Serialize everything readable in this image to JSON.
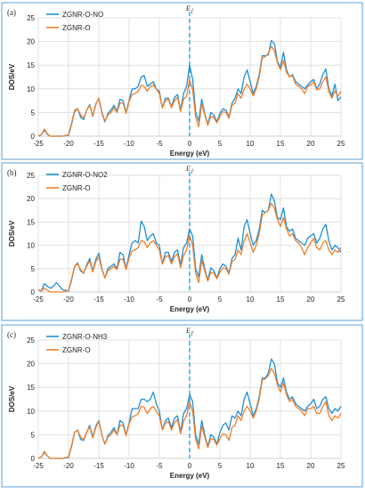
{
  "colors": {
    "series1": "#1f8fd4",
    "series2": "#f07f2a",
    "ef_line": "#2aa7d8",
    "frame": "#5aa0d8",
    "grid": "#d9d9d9"
  },
  "chart_data": [
    {
      "type": "line",
      "panel_label": "(a)",
      "ef_label": "E",
      "ef_sub": "f",
      "xlabel": "Energy (eV)",
      "ylabel": "DOS/eV",
      "xlim": [
        -25,
        25
      ],
      "ylim": [
        0,
        25
      ],
      "xticks": [
        -25,
        -20,
        -15,
        -10,
        -5,
        0,
        5,
        10,
        15,
        20,
        25
      ],
      "yticks": [
        0,
        5,
        10,
        15,
        20,
        25
      ],
      "grid": true,
      "legend_position": "top-left",
      "x": [
        -25,
        -24.5,
        -24,
        -23.5,
        -23,
        -22.5,
        -22,
        -21,
        -20,
        -19.5,
        -19,
        -18.5,
        -18,
        -17.5,
        -17,
        -16.5,
        -16,
        -15.5,
        -15,
        -14.5,
        -14,
        -13.5,
        -13,
        -12.5,
        -12,
        -11.5,
        -11,
        -10.5,
        -10,
        -9.5,
        -9,
        -8.5,
        -8,
        -7.5,
        -7,
        -6.5,
        -6,
        -5.5,
        -5,
        -4.5,
        -4,
        -3.5,
        -3,
        -2.5,
        -2,
        -1.5,
        -1,
        -0.5,
        0,
        0.5,
        1,
        1.5,
        2,
        2.5,
        3,
        3.5,
        4,
        4.5,
        5,
        5.5,
        6,
        6.5,
        7,
        7.5,
        8,
        8.5,
        9,
        9.5,
        10,
        10.5,
        11,
        11.5,
        12,
        12.5,
        13,
        13.5,
        14,
        14.5,
        15,
        15.5,
        16,
        16.5,
        17,
        17.5,
        18,
        18.5,
        19,
        19.5,
        20,
        20.5,
        21,
        21.5,
        22,
        22.5,
        23,
        23.5,
        24,
        24.5,
        25
      ],
      "series": [
        {
          "name": "ZGNR-O-NO",
          "values": [
            0,
            0.3,
            1.3,
            0.4,
            0,
            0,
            0,
            0,
            0.2,
            2.5,
            5.2,
            5.8,
            4.0,
            3.5,
            5.5,
            6.7,
            4.2,
            6.8,
            8.0,
            5.0,
            3.0,
            4.8,
            5.5,
            6.5,
            5.2,
            7.8,
            7.5,
            5.0,
            7.6,
            10.0,
            10.0,
            10.5,
            12.5,
            12.8,
            10.5,
            11.0,
            11.5,
            10.0,
            9.5,
            6.0,
            8.0,
            8.0,
            6.2,
            8.2,
            8.8,
            5.5,
            9.0,
            10.5,
            15.0,
            12.0,
            5.0,
            3.2,
            7.8,
            4.8,
            2.5,
            5.0,
            4.5,
            3.0,
            4.8,
            5.8,
            5.5,
            4.0,
            7.0,
            8.0,
            10.0,
            9.0,
            12.5,
            14.0,
            11.5,
            9.0,
            10.5,
            13.0,
            17.0,
            17.0,
            17.2,
            20.2,
            19.5,
            15.8,
            14.5,
            17.7,
            14.0,
            12.5,
            13.0,
            11.5,
            11.0,
            10.5,
            10.0,
            10.8,
            11.5,
            12.0,
            10.0,
            11.0,
            13.0,
            14.2,
            10.0,
            8.5,
            11.0,
            7.5,
            8.3
          ]
        },
        {
          "name": "ZGNR-O",
          "values": [
            0,
            0.3,
            1.5,
            0.5,
            0,
            0,
            0,
            0,
            0.3,
            2.8,
            5.5,
            5.8,
            4.5,
            3.8,
            5.5,
            6.5,
            4.3,
            6.7,
            8.0,
            5.2,
            3.2,
            4.5,
            5.0,
            6.0,
            5.0,
            7.0,
            7.0,
            4.8,
            7.3,
            8.8,
            9.0,
            9.5,
            10.8,
            10.5,
            9.5,
            10.5,
            10.8,
            10.0,
            9.0,
            6.0,
            7.5,
            7.8,
            6.0,
            7.5,
            8.2,
            5.2,
            7.8,
            8.5,
            12.0,
            9.8,
            4.0,
            2.0,
            6.8,
            4.5,
            2.3,
            4.2,
            4.0,
            2.8,
            4.2,
            5.2,
            5.0,
            3.8,
            6.5,
            7.0,
            9.0,
            8.0,
            10.0,
            11.0,
            10.0,
            8.5,
            10.0,
            12.5,
            16.5,
            16.8,
            17.5,
            19.0,
            18.0,
            15.5,
            14.0,
            16.0,
            13.5,
            12.5,
            12.8,
            11.0,
            10.5,
            10.0,
            9.0,
            10.5,
            10.8,
            11.5,
            9.8,
            10.0,
            11.5,
            12.5,
            9.5,
            8.0,
            9.5,
            8.5,
            9.5
          ]
        }
      ]
    },
    {
      "type": "line",
      "panel_label": "(b)",
      "ef_label": "E",
      "ef_sub": "f",
      "xlabel": "Energy (eV)",
      "ylabel": "DOS/eV",
      "xlim": [
        -25,
        25
      ],
      "ylim": [
        0,
        25
      ],
      "xticks": [
        -25,
        -20,
        -15,
        -10,
        -5,
        0,
        5,
        10,
        15,
        20,
        25
      ],
      "yticks": [
        0,
        5,
        10,
        15,
        20,
        25
      ],
      "grid": true,
      "legend_position": "top-left",
      "x": [
        -25,
        -24.5,
        -24,
        -23.5,
        -23,
        -22.5,
        -22,
        -21,
        -20,
        -19.5,
        -19,
        -18.5,
        -18,
        -17.5,
        -17,
        -16.5,
        -16,
        -15.5,
        -15,
        -14.5,
        -14,
        -13.5,
        -13,
        -12.5,
        -12,
        -11.5,
        -11,
        -10.5,
        -10,
        -9.5,
        -9,
        -8.5,
        -8,
        -7.5,
        -7,
        -6.5,
        -6,
        -5.5,
        -5,
        -4.5,
        -4,
        -3.5,
        -3,
        -2.5,
        -2,
        -1.5,
        -1,
        -0.5,
        0,
        0.5,
        1,
        1.5,
        2,
        2.5,
        3,
        3.5,
        4,
        4.5,
        5,
        5.5,
        6,
        6.5,
        7,
        7.5,
        8,
        8.5,
        9,
        9.5,
        10,
        10.5,
        11,
        11.5,
        12,
        12.5,
        13,
        13.5,
        14,
        14.5,
        15,
        15.5,
        16,
        16.5,
        17,
        17.5,
        18,
        18.5,
        19,
        19.5,
        20,
        20.5,
        21,
        21.5,
        22,
        22.5,
        23,
        23.5,
        24,
        24.5,
        25
      ],
      "series": [
        {
          "name": "ZGNR-O-NO2",
          "values": [
            0.5,
            0.2,
            1.8,
            1.2,
            0.8,
            1.2,
            2.0,
            0.5,
            0.2,
            2.5,
            5.5,
            6.2,
            4.5,
            4.0,
            5.8,
            7.2,
            4.5,
            7.0,
            8.3,
            5.0,
            3.0,
            5.0,
            5.5,
            6.0,
            5.0,
            8.5,
            8.0,
            5.0,
            8.0,
            10.5,
            11.0,
            10.5,
            15.2,
            14.0,
            11.0,
            12.0,
            12.5,
            10.5,
            10.0,
            6.0,
            8.5,
            8.5,
            6.5,
            8.5,
            9.0,
            5.8,
            9.5,
            10.5,
            13.5,
            12.0,
            5.0,
            3.2,
            8.0,
            5.0,
            2.5,
            5.2,
            4.5,
            3.0,
            5.0,
            6.0,
            5.5,
            4.0,
            7.2,
            8.0,
            11.5,
            9.0,
            14.0,
            15.5,
            12.5,
            10.0,
            11.0,
            13.5,
            17.5,
            17.0,
            17.5,
            21.0,
            19.5,
            16.0,
            15.5,
            18.0,
            14.0,
            13.0,
            13.5,
            11.5,
            11.0,
            10.5,
            10.0,
            11.5,
            12.0,
            12.5,
            10.5,
            11.5,
            13.5,
            14.5,
            11.0,
            9.0,
            10.0,
            9.5,
            8.5
          ]
        },
        {
          "name": "ZGNR-O",
          "values": [
            0.5,
            0.2,
            0.8,
            0.4,
            0,
            0,
            0,
            0,
            0.3,
            2.8,
            5.5,
            6.0,
            4.8,
            4.0,
            5.5,
            6.7,
            4.3,
            6.5,
            7.5,
            4.8,
            3.0,
            4.5,
            5.0,
            5.5,
            4.8,
            7.0,
            7.0,
            4.8,
            7.3,
            8.8,
            9.0,
            9.5,
            11.0,
            10.8,
            9.5,
            10.5,
            11.0,
            10.0,
            9.0,
            6.0,
            7.5,
            7.8,
            6.0,
            7.5,
            8.2,
            5.2,
            7.8,
            9.0,
            12.2,
            10.0,
            4.0,
            2.0,
            6.8,
            4.5,
            2.3,
            4.2,
            4.0,
            2.8,
            4.2,
            5.2,
            5.0,
            3.8,
            6.5,
            7.0,
            9.0,
            8.0,
            11.0,
            12.5,
            10.5,
            8.5,
            10.0,
            12.5,
            16.5,
            17.0,
            17.5,
            19.0,
            18.0,
            15.5,
            14.0,
            16.0,
            13.5,
            12.0,
            12.5,
            11.0,
            10.5,
            9.5,
            8.0,
            9.5,
            10.5,
            11.5,
            9.5,
            9.0,
            10.5,
            11.0,
            9.0,
            8.0,
            9.0,
            8.5,
            9.5
          ]
        }
      ]
    },
    {
      "type": "line",
      "panel_label": "(c)",
      "ef_label": "E",
      "ef_sub": "f",
      "xlabel": "Energy (eV)",
      "ylabel": "DOS/eV",
      "xlim": [
        -25,
        25
      ],
      "ylim": [
        0,
        25
      ],
      "xticks": [
        -25,
        -20,
        -15,
        -10,
        -5,
        0,
        5,
        10,
        15,
        20,
        25
      ],
      "yticks": [
        0,
        5,
        10,
        15,
        20,
        25
      ],
      "grid": true,
      "legend_position": "top-left",
      "x": [
        -25,
        -24.5,
        -24,
        -23.5,
        -23,
        -22.5,
        -22,
        -21,
        -20,
        -19.5,
        -19,
        -18.5,
        -18,
        -17.5,
        -17,
        -16.5,
        -16,
        -15.5,
        -15,
        -14.5,
        -14,
        -13.5,
        -13,
        -12.5,
        -12,
        -11.5,
        -11,
        -10.5,
        -10,
        -9.5,
        -9,
        -8.5,
        -8,
        -7.5,
        -7,
        -6.5,
        -6,
        -5.5,
        -5,
        -4.5,
        -4,
        -3.5,
        -3,
        -2.5,
        -2,
        -1.5,
        -1,
        -0.5,
        0,
        0.5,
        1,
        1.5,
        2,
        2.5,
        3,
        3.5,
        4,
        4.5,
        5,
        5.5,
        6,
        6.5,
        7,
        7.5,
        8,
        8.5,
        9,
        9.5,
        10,
        10.5,
        11,
        11.5,
        12,
        12.5,
        13,
        13.5,
        14,
        14.5,
        15,
        15.5,
        16,
        16.5,
        17,
        17.5,
        18,
        18.5,
        19,
        19.5,
        20,
        20.5,
        21,
        21.5,
        22,
        22.5,
        23,
        23.5,
        24,
        24.5,
        25
      ],
      "series": [
        {
          "name": "ZGNR-O-NH3",
          "values": [
            0,
            0.3,
            1.3,
            0.5,
            0,
            0,
            0,
            0,
            0.2,
            2.5,
            5.5,
            6.0,
            4.0,
            3.8,
            5.5,
            7.0,
            4.5,
            6.8,
            8.0,
            5.0,
            3.0,
            4.8,
            5.5,
            6.5,
            5.0,
            8.0,
            7.5,
            5.0,
            7.5,
            10.5,
            10.5,
            10.5,
            12.5,
            12.5,
            12.0,
            12.5,
            14.0,
            11.5,
            10.0,
            6.0,
            8.0,
            8.5,
            6.5,
            8.5,
            9.0,
            5.5,
            9.5,
            10.5,
            13.5,
            12.0,
            5.0,
            3.0,
            8.0,
            5.0,
            2.5,
            5.0,
            4.5,
            3.0,
            5.5,
            7.0,
            7.5,
            6.0,
            9.0,
            8.5,
            10.0,
            9.0,
            12.5,
            14.0,
            11.5,
            9.0,
            10.5,
            13.0,
            17.0,
            17.0,
            18.0,
            21.0,
            20.0,
            16.0,
            15.0,
            17.0,
            14.0,
            12.5,
            13.0,
            11.5,
            11.0,
            10.5,
            10.0,
            11.0,
            11.5,
            12.5,
            10.5,
            11.0,
            12.5,
            13.0,
            10.5,
            9.5,
            10.5,
            10.0,
            11.0
          ]
        },
        {
          "name": "ZGNR-O",
          "values": [
            0,
            0.3,
            1.5,
            0.5,
            0,
            0,
            0,
            0,
            0.3,
            2.8,
            5.5,
            6.0,
            4.5,
            4.0,
            5.5,
            6.7,
            4.3,
            6.5,
            7.8,
            5.0,
            3.0,
            4.5,
            5.0,
            6.0,
            5.0,
            7.0,
            7.0,
            4.8,
            7.3,
            8.8,
            9.0,
            9.5,
            11.0,
            10.8,
            9.5,
            10.5,
            11.0,
            10.0,
            9.0,
            6.0,
            7.5,
            7.8,
            6.0,
            7.5,
            8.2,
            5.2,
            7.8,
            9.0,
            12.0,
            10.0,
            4.0,
            2.0,
            6.8,
            4.5,
            2.3,
            4.2,
            4.0,
            2.8,
            4.2,
            5.2,
            5.0,
            3.8,
            6.5,
            7.0,
            9.0,
            8.0,
            10.0,
            11.0,
            10.0,
            8.5,
            10.0,
            12.5,
            16.5,
            16.8,
            17.5,
            19.0,
            18.0,
            15.5,
            14.0,
            16.0,
            13.5,
            12.0,
            12.5,
            11.0,
            10.5,
            10.0,
            9.0,
            10.5,
            10.5,
            11.0,
            9.5,
            9.5,
            11.0,
            12.0,
            9.0,
            8.0,
            9.0,
            8.5,
            9.5
          ]
        }
      ]
    }
  ]
}
